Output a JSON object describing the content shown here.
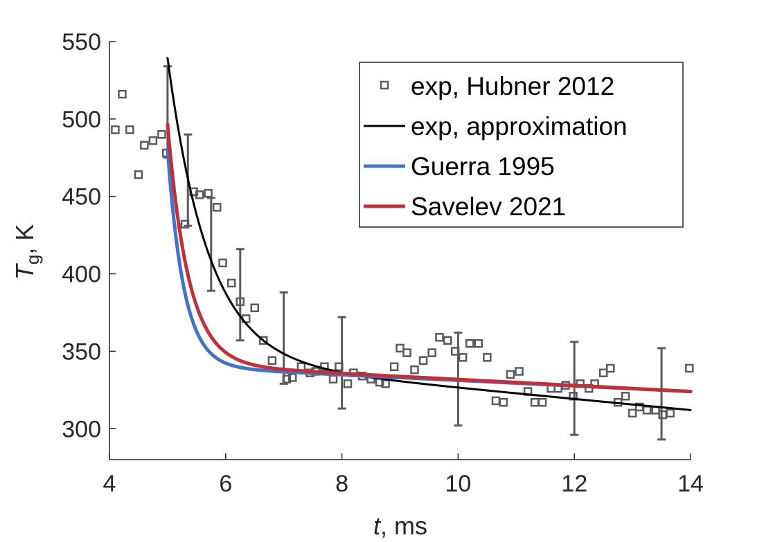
{
  "chart_data": {
    "type": "scatter",
    "title": "",
    "xlabel": {
      "var": "t",
      "unit": ", ms"
    },
    "ylabel": {
      "var": "T",
      "sub": "g",
      "unit": ", K"
    },
    "xlim": [
      4,
      14
    ],
    "ylim": [
      280,
      550
    ],
    "xticks": [
      4,
      6,
      8,
      10,
      12,
      14
    ],
    "yticks": [
      300,
      350,
      400,
      450,
      500,
      550
    ],
    "grid": false,
    "legend_position": "top-right",
    "series": [
      {
        "name": "exp, Hubner 2012",
        "kind": "markers",
        "color": "#5a5a5a",
        "points": [
          [
            4.1,
            493
          ],
          [
            4.22,
            516
          ],
          [
            4.35,
            493
          ],
          [
            4.5,
            464
          ],
          [
            4.6,
            483
          ],
          [
            4.75,
            486
          ],
          [
            4.9,
            490
          ],
          [
            4.98,
            478
          ],
          [
            5.3,
            432
          ],
          [
            5.45,
            453
          ],
          [
            5.55,
            451
          ],
          [
            5.7,
            452
          ],
          [
            5.85,
            443
          ],
          [
            5.95,
            407
          ],
          [
            6.1,
            394
          ],
          [
            6.25,
            382
          ],
          [
            6.35,
            371
          ],
          [
            6.5,
            378
          ],
          [
            6.65,
            357
          ],
          [
            6.8,
            344
          ],
          [
            7.05,
            332
          ],
          [
            7.15,
            333
          ],
          [
            7.3,
            340
          ],
          [
            7.45,
            336
          ],
          [
            7.55,
            337
          ],
          [
            7.7,
            340
          ],
          [
            7.85,
            332
          ],
          [
            7.95,
            340
          ],
          [
            8.1,
            329
          ],
          [
            8.2,
            336
          ],
          [
            8.35,
            334
          ],
          [
            8.5,
            332
          ],
          [
            8.65,
            330
          ],
          [
            8.75,
            329
          ],
          [
            8.9,
            340
          ],
          [
            9.0,
            352
          ],
          [
            9.12,
            349
          ],
          [
            9.25,
            338
          ],
          [
            9.4,
            344
          ],
          [
            9.55,
            349
          ],
          [
            9.68,
            359
          ],
          [
            9.82,
            357
          ],
          [
            9.95,
            350
          ],
          [
            10.08,
            346
          ],
          [
            10.2,
            355
          ],
          [
            10.35,
            355
          ],
          [
            10.5,
            346
          ],
          [
            10.65,
            318
          ],
          [
            10.78,
            317
          ],
          [
            10.9,
            335
          ],
          [
            11.05,
            337
          ],
          [
            11.2,
            324
          ],
          [
            11.32,
            317
          ],
          [
            11.45,
            317
          ],
          [
            11.6,
            326
          ],
          [
            11.72,
            326
          ],
          [
            11.85,
            328
          ],
          [
            11.98,
            321
          ],
          [
            12.1,
            329
          ],
          [
            12.25,
            326
          ],
          [
            12.35,
            329
          ],
          [
            12.5,
            336
          ],
          [
            12.62,
            339
          ],
          [
            12.75,
            317
          ],
          [
            12.88,
            321
          ],
          [
            13.0,
            310
          ],
          [
            13.12,
            314
          ],
          [
            13.25,
            312
          ],
          [
            13.4,
            312
          ],
          [
            13.52,
            309
          ],
          [
            13.65,
            310
          ],
          [
            13.98,
            339
          ]
        ]
      },
      {
        "name": "exp, approximation",
        "kind": "line",
        "color": "#000000",
        "width": 3,
        "model": {
          "A": 195,
          "tau": 0.7,
          "B": 3.6
        }
      },
      {
        "name": "Guerra 1995",
        "kind": "line",
        "color": "#4472c4",
        "width": 5,
        "model": {
          "A": 140,
          "tau": 0.28,
          "B": 1.8
        }
      },
      {
        "name": "Savelev 2021",
        "kind": "line",
        "color": "#c0303a",
        "width": 5,
        "model": {
          "A": 155,
          "tau": 0.36,
          "B": 1.95
        }
      }
    ],
    "error_bars": {
      "color": "#5a5a5a",
      "items": [
        {
          "x": 5.0,
          "lo": 475,
          "hi": 534
        },
        {
          "x": 5.35,
          "lo": 431,
          "hi": 490
        },
        {
          "x": 5.75,
          "lo": 389,
          "hi": 449
        },
        {
          "x": 6.25,
          "lo": 357,
          "hi": 416
        },
        {
          "x": 7.0,
          "lo": 329,
          "hi": 388
        },
        {
          "x": 8.0,
          "lo": 313,
          "hi": 372
        },
        {
          "x": 10.0,
          "lo": 302,
          "hi": 362
        },
        {
          "x": 12.0,
          "lo": 296,
          "hi": 356
        },
        {
          "x": 13.5,
          "lo": 293,
          "hi": 352
        }
      ]
    }
  }
}
